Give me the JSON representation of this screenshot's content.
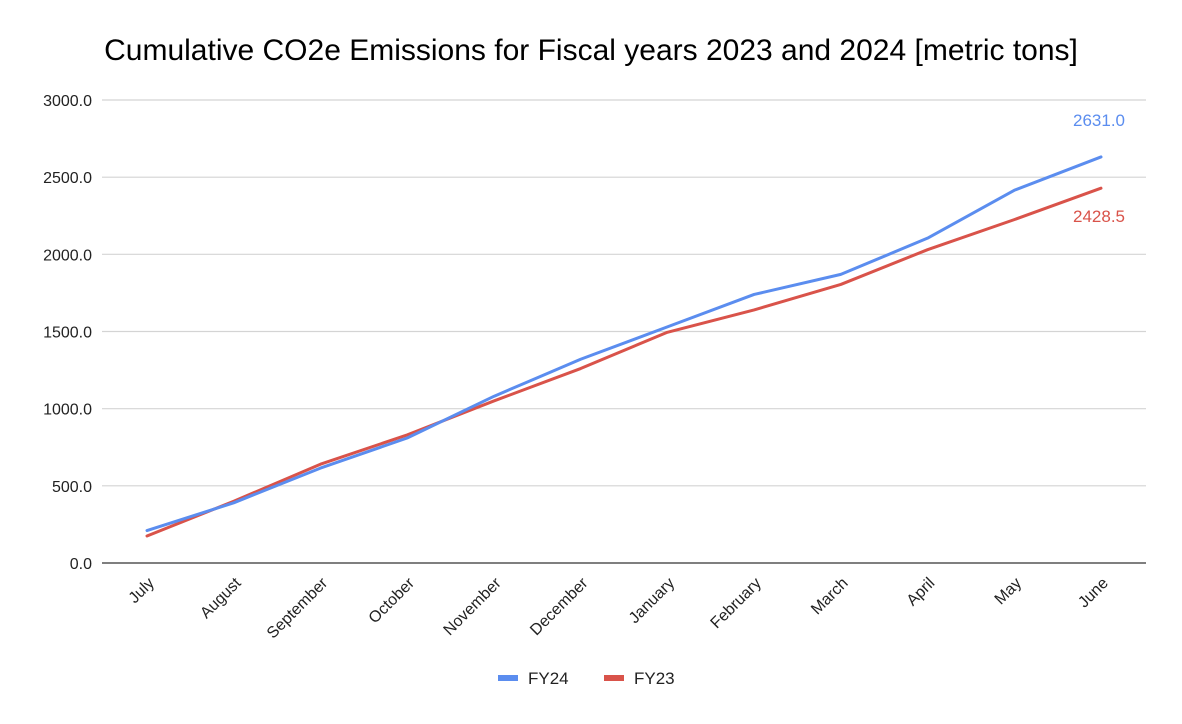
{
  "chart_data": {
    "type": "line",
    "title": "Cumulative CO2e Emissions for Fiscal years 2023 and 2024 [metric tons]",
    "xlabel": "",
    "ylabel": "",
    "categories": [
      "July",
      "August",
      "September",
      "October",
      "November",
      "December",
      "January",
      "February",
      "March",
      "April",
      "May",
      "June"
    ],
    "ylim": [
      0,
      3000
    ],
    "yticks": [
      "0.0",
      "500.0",
      "1000.0",
      "1500.0",
      "2000.0",
      "2500.0",
      "3000.0"
    ],
    "grid": true,
    "legend_position": "bottom",
    "series": [
      {
        "name": "FY24",
        "color": "#5b8def",
        "values": [
          210,
          390,
          615,
          810,
          1080,
          1320,
          1530,
          1740,
          1870,
          2105,
          2415,
          2631.0
        ],
        "end_label": "2631.0"
      },
      {
        "name": "FY23",
        "color": "#d9534a",
        "values": [
          175,
          400,
          640,
          830,
          1050,
          1260,
          1495,
          1640,
          1805,
          2030,
          2225,
          2428.5
        ],
        "end_label": "2428.5"
      }
    ]
  }
}
